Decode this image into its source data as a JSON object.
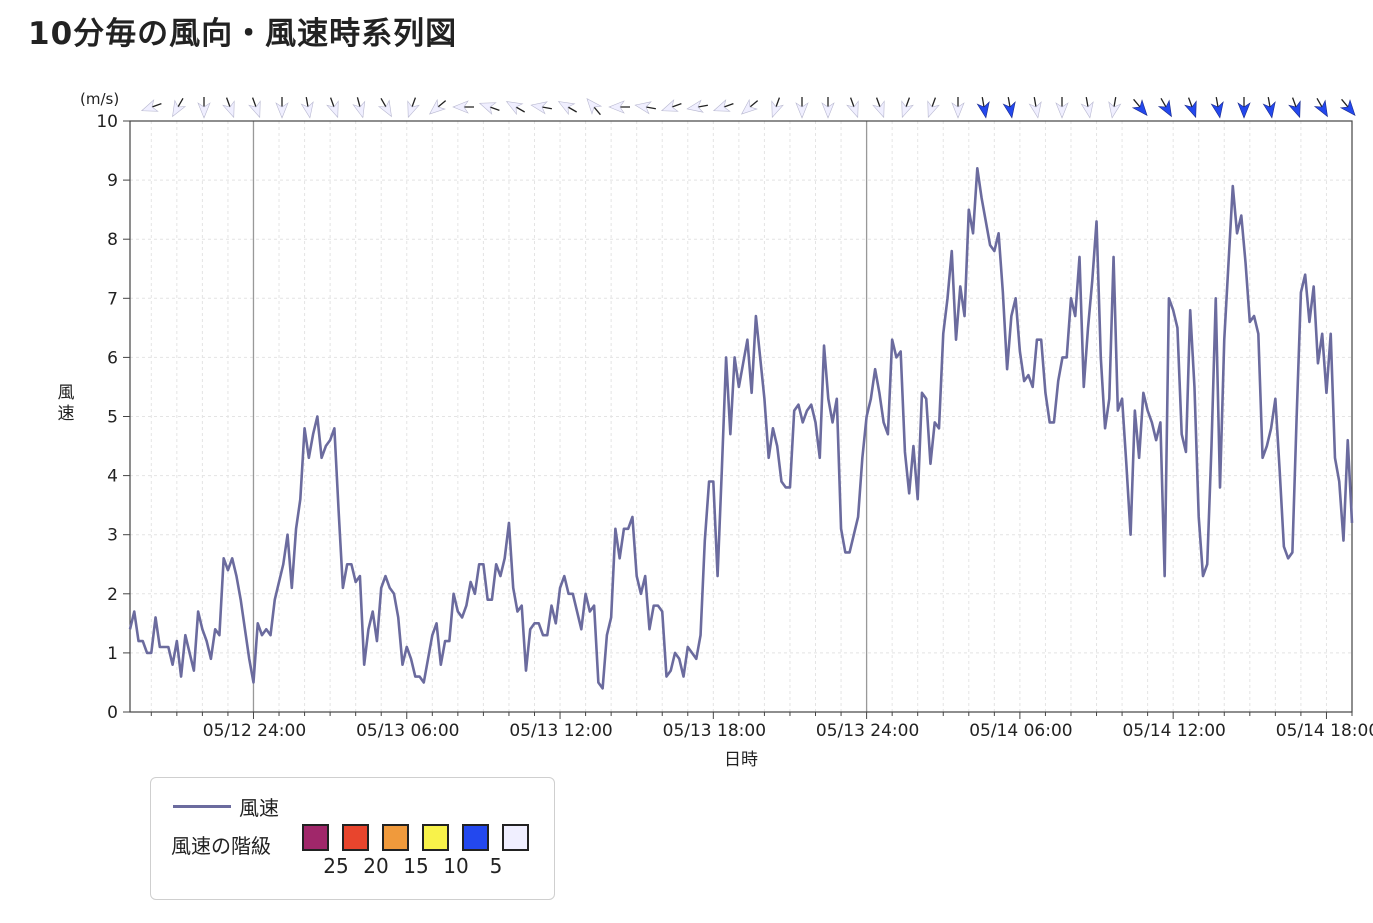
{
  "title": "10分毎の風向・風速時系列図",
  "chart_data": {
    "type": "line",
    "title": "10分毎の風向・風速時系列図",
    "xlabel": "日時",
    "ylabel": "風速",
    "yunit": "(m/s)",
    "ylim": [
      0,
      10
    ],
    "yticks": [
      "0",
      "1",
      "2",
      "3",
      "4",
      "5",
      "6",
      "7",
      "8",
      "9",
      "10"
    ],
    "x_start": "05/12 19:10",
    "x_end": "05/14 23:00",
    "x_interval_minutes": 10,
    "xticks": [
      {
        "label": "05/12 24:00",
        "time": "05/13 00:00"
      },
      {
        "label": "05/13 06:00",
        "time": "05/13 06:00"
      },
      {
        "label": "05/13 12:00",
        "time": "05/13 12:00"
      },
      {
        "label": "05/13 18:00",
        "time": "05/13 18:00"
      },
      {
        "label": "05/13 24:00",
        "time": "05/14 00:00"
      },
      {
        "label": "05/14 06:00",
        "time": "05/14 06:00"
      },
      {
        "label": "05/14 12:00",
        "time": "05/14 12:00"
      },
      {
        "label": "05/14 18:00",
        "time": "05/14 18:00"
      }
    ],
    "grid": true,
    "legend_position": "bottom-left",
    "series": [
      {
        "name": "風速",
        "color": "#6b6b9e",
        "values": [
          1.4,
          1.7,
          1.2,
          1.2,
          1.0,
          1.0,
          1.6,
          1.1,
          1.1,
          1.1,
          0.8,
          1.2,
          0.6,
          1.3,
          1.0,
          0.7,
          1.7,
          1.4,
          1.2,
          0.9,
          1.4,
          1.3,
          2.6,
          2.4,
          2.6,
          2.3,
          1.9,
          1.4,
          0.9,
          0.5,
          1.5,
          1.3,
          1.4,
          1.3,
          1.9,
          2.2,
          2.5,
          3.0,
          2.1,
          3.1,
          3.6,
          4.8,
          4.3,
          4.7,
          5.0,
          4.3,
          4.5,
          4.6,
          4.8,
          3.4,
          2.1,
          2.5,
          2.5,
          2.2,
          2.3,
          0.8,
          1.4,
          1.7,
          1.2,
          2.1,
          2.3,
          2.1,
          2.0,
          1.6,
          0.8,
          1.1,
          0.9,
          0.6,
          0.6,
          0.5,
          0.9,
          1.3,
          1.5,
          0.8,
          1.2,
          1.2,
          2.0,
          1.7,
          1.6,
          1.8,
          2.2,
          2.0,
          2.5,
          2.5,
          1.9,
          1.9,
          2.5,
          2.3,
          2.6,
          3.2,
          2.1,
          1.7,
          1.8,
          0.7,
          1.4,
          1.5,
          1.5,
          1.3,
          1.3,
          1.8,
          1.5,
          2.1,
          2.3,
          2.0,
          2.0,
          1.7,
          1.4,
          2.0,
          1.7,
          1.8,
          0.5,
          0.4,
          1.3,
          1.6,
          3.1,
          2.6,
          3.1,
          3.1,
          3.3,
          2.3,
          2.0,
          2.3,
          1.4,
          1.8,
          1.8,
          1.7,
          0.6,
          0.7,
          1.0,
          0.9,
          0.6,
          1.1,
          1.0,
          0.9,
          1.3,
          2.9,
          3.9,
          3.9,
          2.3,
          4.1,
          6.0,
          4.7,
          6.0,
          5.5,
          5.9,
          6.3,
          5.4,
          6.7,
          6.0,
          5.3,
          4.3,
          4.8,
          4.5,
          3.9,
          3.8,
          3.8,
          5.1,
          5.2,
          4.9,
          5.1,
          5.2,
          4.9,
          4.3,
          6.2,
          5.3,
          4.9,
          5.3,
          3.1,
          2.7,
          2.7,
          3.0,
          3.3,
          4.3,
          5.0,
          5.3,
          5.8,
          5.4,
          4.9,
          4.7,
          6.3,
          6.0,
          6.1,
          4.4,
          3.7,
          4.5,
          3.6,
          5.4,
          5.3,
          4.2,
          4.9,
          4.8,
          6.4,
          7.0,
          7.8,
          6.3,
          7.2,
          6.7,
          8.5,
          8.1,
          9.2,
          8.7,
          8.3,
          7.9,
          7.8,
          8.1,
          7.1,
          5.8,
          6.7,
          7.0,
          6.1,
          5.6,
          5.7,
          5.5,
          6.3,
          6.3,
          5.4,
          4.9,
          4.9,
          5.6,
          6.0,
          6.0,
          7.0,
          6.7,
          7.7,
          5.5,
          6.5,
          7.3,
          8.3,
          6.0,
          4.8,
          5.3,
          7.7,
          5.1,
          5.3,
          4.2,
          3.0,
          5.1,
          4.3,
          5.4,
          5.1,
          4.9,
          4.6,
          4.9,
          2.3,
          7.0,
          6.8,
          6.5,
          4.7,
          4.4,
          6.8,
          5.5,
          3.3,
          2.3,
          2.5,
          4.5,
          7.0,
          3.8,
          6.3,
          7.6,
          8.9,
          8.1,
          8.4,
          7.6,
          6.6,
          6.7,
          6.4,
          4.3,
          4.5,
          4.8,
          5.3,
          4.1,
          2.8,
          2.6,
          2.7,
          5.0,
          7.1,
          7.4,
          6.6,
          7.2,
          5.9,
          6.4,
          5.4,
          6.4,
          4.3,
          3.9,
          2.9,
          4.6,
          3.2
        ]
      }
    ],
    "wind_direction_arrows": {
      "count": 47,
      "speeds": [
        1.5,
        1.2,
        1.0,
        1.2,
        1.3,
        1.0,
        1.8,
        2.4,
        1.5,
        1.8,
        2.6,
        4.0,
        4.6,
        3.5,
        2.3,
        1.6,
        0.8,
        1.3,
        1.5,
        2.2,
        2.2,
        2.5,
        1.9,
        1.6,
        1.8,
        2.0,
        2.6,
        3.0,
        1.8,
        1.0,
        1.0,
        3.5,
        5.5,
        6.0,
        4.5,
        4.8,
        4.9,
        3.0,
        5.0,
        5.6,
        5.3,
        6.5,
        7.5,
        8.0,
        7.0,
        6.5,
        5.8
      ],
      "directions_deg": [
        250,
        210,
        180,
        160,
        160,
        180,
        170,
        160,
        165,
        150,
        200,
        230,
        270,
        290,
        300,
        280,
        300,
        320,
        270,
        280,
        250,
        260,
        250,
        230,
        200,
        180,
        180,
        160,
        160,
        200,
        200,
        180,
        170,
        170,
        170,
        180,
        170,
        190,
        140,
        150,
        160,
        170,
        180,
        170,
        160,
        150,
        140
      ]
    },
    "speed_classes": {
      "label": "風速の階級",
      "colors": [
        "#a0276a",
        "#e8452d",
        "#f09a3c",
        "#f8f24a",
        "#2348ee",
        "#f0efff"
      ],
      "thresholds": [
        "25",
        "20",
        "15",
        "10",
        "5"
      ]
    }
  }
}
